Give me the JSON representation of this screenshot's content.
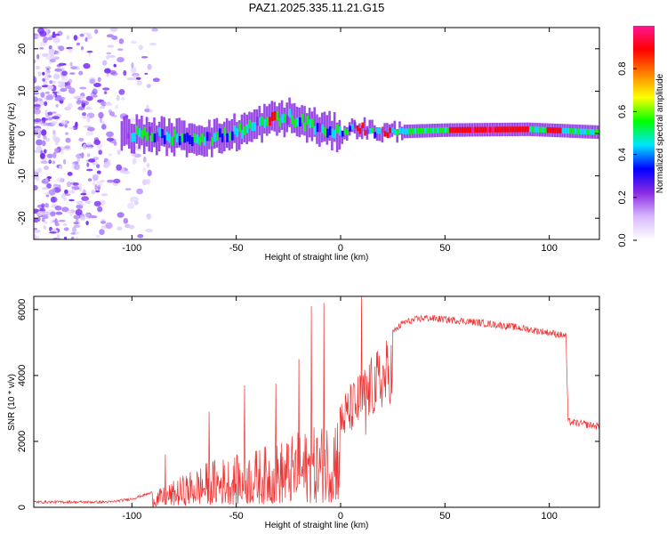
{
  "title": "PAZ1.2025.335.11.21.G15",
  "chart_data": [
    {
      "type": "heatmap",
      "name": "spectrogram",
      "xlabel": "Height of straight line (km)",
      "ylabel": "Frequency (Hz)",
      "xlim": [
        -147,
        124
      ],
      "ylim": [
        -25,
        25
      ],
      "xticks": [
        -100,
        -50,
        0,
        50,
        100
      ],
      "xtick_labels": [
        "-100",
        "-50",
        "0",
        "50",
        "100"
      ],
      "yticks": [
        -20,
        -10,
        0,
        10,
        20
      ],
      "ytick_labels": [
        "-20",
        "-10",
        "0",
        "10",
        "20"
      ],
      "colorbar": {
        "label": "Normalized spectral amplitude",
        "range": [
          0,
          1
        ],
        "ticks": [
          0.0,
          0.2,
          0.4,
          0.6,
          0.8
        ],
        "tick_labels": [
          "0.0",
          "0.2",
          "0.4",
          "0.6",
          "0.8"
        ],
        "colors": [
          "#ffffff",
          "#d8b8ff",
          "#8a2be2",
          "#0000ff",
          "#00e5ff",
          "#00ff00",
          "#ffff00",
          "#ff8000",
          "#ff0000",
          "#ff1493"
        ]
      },
      "ridge": [
        {
          "x": -100,
          "y": 0
        },
        {
          "x": -75,
          "y": -1
        },
        {
          "x": -60,
          "y": -1
        },
        {
          "x": -45,
          "y": 1
        },
        {
          "x": -35,
          "y": 3
        },
        {
          "x": -25,
          "y": 4
        },
        {
          "x": -15,
          "y": 2
        },
        {
          "x": -5,
          "y": 0.5
        },
        {
          "x": 0,
          "y": 0
        },
        {
          "x": 8,
          "y": 1.5
        },
        {
          "x": 20,
          "y": 0.3
        },
        {
          "x": 50,
          "y": 0.8
        },
        {
          "x": 90,
          "y": 1
        },
        {
          "x": 124,
          "y": 0.3
        }
      ]
    },
    {
      "type": "line",
      "name": "snr",
      "xlabel": "Height of straight line (km)",
      "ylabel": "SNR (10 * v/v)",
      "xlim": [
        -147,
        124
      ],
      "ylim": [
        0,
        6400
      ],
      "xticks": [
        -100,
        -50,
        0,
        50,
        100
      ],
      "xtick_labels": [
        "-100",
        "-50",
        "0",
        "50",
        "100"
      ],
      "yticks": [
        0,
        2000,
        4000,
        6000
      ],
      "ytick_labels": [
        "0",
        "2000",
        "4000",
        "6000"
      ],
      "color": "#ee3333",
      "envelope": [
        {
          "x": -147,
          "y": 160
        },
        {
          "x": -110,
          "y": 160
        },
        {
          "x": -100,
          "y": 260
        },
        {
          "x": -90,
          "y": 450
        },
        {
          "x": -80,
          "y": 800
        },
        {
          "x": -70,
          "y": 1200
        },
        {
          "x": -60,
          "y": 1500
        },
        {
          "x": -50,
          "y": 1600
        },
        {
          "x": -40,
          "y": 1800
        },
        {
          "x": -30,
          "y": 2000
        },
        {
          "x": -20,
          "y": 2300
        },
        {
          "x": -10,
          "y": 2500
        },
        {
          "x": -5,
          "y": 2800
        },
        {
          "x": 0,
          "y": 3400
        },
        {
          "x": 10,
          "y": 4200
        },
        {
          "x": 20,
          "y": 5000
        },
        {
          "x": 30,
          "y": 5600
        },
        {
          "x": 40,
          "y": 5750
        },
        {
          "x": 60,
          "y": 5650
        },
        {
          "x": 80,
          "y": 5500
        },
        {
          "x": 100,
          "y": 5300
        },
        {
          "x": 108,
          "y": 5200
        },
        {
          "x": 109,
          "y": 2600
        },
        {
          "x": 124,
          "y": 2450
        }
      ],
      "spikes": [
        {
          "x": -84,
          "y": 1600
        },
        {
          "x": -63,
          "y": 2900
        },
        {
          "x": -46,
          "y": 3700
        },
        {
          "x": -31,
          "y": 3750
        },
        {
          "x": -20,
          "y": 4500
        },
        {
          "x": -14,
          "y": 6100
        },
        {
          "x": -8,
          "y": 6200
        },
        {
          "x": 10,
          "y": 6400
        },
        {
          "x": 12,
          "y": 2200
        }
      ]
    }
  ]
}
